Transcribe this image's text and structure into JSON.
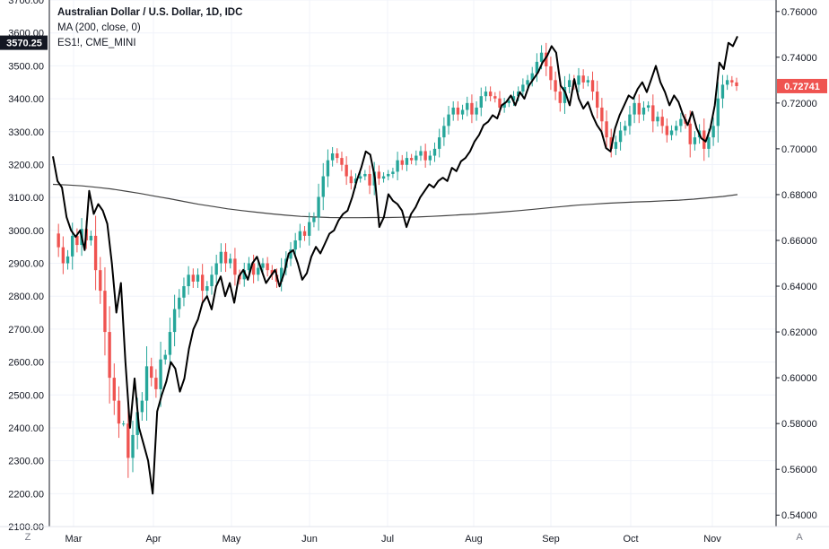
{
  "legend": {
    "title": "Australian Dollar / U.S. Dollar, 1D, IDC",
    "ma": "MA (200, close, 0)",
    "es": "ES1!, CME_MINI"
  },
  "badges": {
    "left_value": "3570.25",
    "right_value": "0.72741",
    "left_color": "#131722",
    "right_color": "#ef5350"
  },
  "buttons": {
    "left": "Z",
    "right": "A"
  },
  "chart_data": {
    "type": "line",
    "title": "Australian Dollar / U.S. Dollar, 1D, IDC",
    "x_tick_labels": [
      "Mar",
      "Apr",
      "May",
      "Jun",
      "Jul",
      "Aug",
      "Sep",
      "Oct",
      "Nov"
    ],
    "left_axis": {
      "ylim": [
        2100,
        3700
      ],
      "ticks": [
        "3700.00",
        "3600.00",
        "3500.00",
        "3400.00",
        "3300.00",
        "3200.00",
        "3100.00",
        "3000.00",
        "2900.00",
        "2800.00",
        "2700.00",
        "2600.00",
        "2500.00",
        "2400.00",
        "2300.00",
        "2200.00",
        "2100.00"
      ]
    },
    "right_axis": {
      "ylim": [
        0.535,
        0.765
      ],
      "ticks": [
        "0.76000",
        "0.74000",
        "0.72000",
        "0.70000",
        "0.68000",
        "0.66000",
        "0.64000",
        "0.62000",
        "0.60000",
        "0.58000",
        "0.56000",
        "0.54000"
      ]
    },
    "colors": {
      "up": "#26a69a",
      "down": "#ef5350",
      "es_line": "#000000",
      "ma_line": "#444444",
      "grid": "#f0f3fa"
    },
    "grid": true,
    "series": [
      {
        "name": "ES1!, CME_MINI",
        "axis": "left",
        "values": [
          3225,
          3150,
          3130,
          3040,
          3000,
          2980,
          3000,
          2940,
          3120,
          3050,
          3080,
          3060,
          3020,
          2900,
          2750,
          2840,
          2600,
          2400,
          2550,
          2400,
          2350,
          2300,
          2200,
          2450,
          2500,
          2540,
          2600,
          2580,
          2510,
          2550,
          2640,
          2700,
          2730,
          2780,
          2800,
          2760,
          2830,
          2860,
          2800,
          2840,
          2780,
          2860,
          2880,
          2850,
          2900,
          2920,
          2880,
          2840,
          2860,
          2880,
          2830,
          2870,
          2930,
          2940,
          2900,
          2850,
          2870,
          2920,
          2950,
          2930,
          2960,
          2990,
          3000,
          3030,
          3050,
          3060,
          3100,
          3150,
          3190,
          3240,
          3230,
          3160,
          3010,
          3040,
          3110,
          3090,
          3080,
          3060,
          3010,
          3050,
          3070,
          3100,
          3120,
          3140,
          3130,
          3150,
          3160,
          3150,
          3190,
          3180,
          3210,
          3220,
          3240,
          3270,
          3290,
          3320,
          3330,
          3350,
          3340,
          3380,
          3390,
          3410,
          3380,
          3420,
          3400,
          3440,
          3460,
          3480,
          3510,
          3530,
          3560,
          3540,
          3440,
          3420,
          3380,
          3460,
          3400,
          3370,
          3390,
          3350,
          3320,
          3300,
          3250,
          3240,
          3310,
          3350,
          3380,
          3410,
          3400,
          3430,
          3450,
          3420,
          3460,
          3500,
          3450,
          3420,
          3380,
          3410,
          3390,
          3350,
          3320,
          3360,
          3310,
          3280,
          3270,
          3310,
          3380,
          3510,
          3490,
          3570,
          3560,
          3590
        ]
      },
      {
        "name": "MA (200, close, 0)",
        "axis": "right",
        "values": [
          0.6845,
          0.6842,
          0.6838,
          0.6832,
          0.6825,
          0.6815,
          0.6805,
          0.6793,
          0.6782,
          0.677,
          0.6758,
          0.6748,
          0.6738,
          0.673,
          0.6723,
          0.6716,
          0.671,
          0.6705,
          0.6702,
          0.67,
          0.6699,
          0.6699,
          0.67,
          0.67,
          0.6701,
          0.6702,
          0.6705,
          0.6708,
          0.6712,
          0.6715,
          0.672,
          0.6725,
          0.673,
          0.6736,
          0.6742,
          0.6748,
          0.6754,
          0.6758,
          0.6762,
          0.6765,
          0.6768,
          0.677,
          0.6773,
          0.6776,
          0.678,
          0.6786,
          0.6792,
          0.68
        ]
      },
      {
        "name": "Australian Dollar / U.S. Dollar",
        "axis": "right",
        "kind": "candlestick",
        "values": [
          0.663,
          0.657,
          0.65,
          0.653,
          0.662,
          0.658,
          0.665,
          0.66,
          0.662,
          0.647,
          0.638,
          0.62,
          0.6,
          0.59,
          0.58,
          0.58,
          0.565,
          0.575,
          0.585,
          0.59,
          0.605,
          0.6,
          0.595,
          0.608,
          0.61,
          0.62,
          0.63,
          0.635,
          0.64,
          0.645,
          0.642,
          0.645,
          0.638,
          0.64,
          0.645,
          0.65,
          0.655,
          0.65,
          0.652,
          0.645,
          0.643,
          0.647,
          0.65,
          0.645,
          0.648,
          0.65,
          0.647,
          0.645,
          0.642,
          0.648,
          0.652,
          0.656,
          0.66,
          0.664,
          0.662,
          0.668,
          0.67,
          0.679,
          0.688,
          0.695,
          0.698,
          0.696,
          0.693,
          0.688,
          0.685,
          0.687,
          0.688,
          0.689,
          0.684,
          0.69,
          0.687,
          0.688,
          0.689,
          0.69,
          0.695,
          0.693,
          0.696,
          0.695,
          0.697,
          0.699,
          0.695,
          0.697,
          0.7,
          0.705,
          0.71,
          0.715,
          0.718,
          0.715,
          0.717,
          0.72,
          0.715,
          0.718,
          0.723,
          0.725,
          0.723,
          0.722,
          0.718,
          0.72,
          0.721,
          0.723,
          0.725,
          0.728,
          0.73,
          0.733,
          0.738,
          0.742,
          0.736,
          0.73,
          0.725,
          0.72,
          0.727,
          0.73,
          0.728,
          0.732,
          0.729,
          0.73,
          0.725,
          0.718,
          0.712,
          0.705,
          0.7,
          0.703,
          0.708,
          0.71,
          0.715,
          0.72,
          0.715,
          0.718,
          0.719,
          0.712,
          0.714,
          0.71,
          0.706,
          0.708,
          0.71,
          0.713,
          0.711,
          0.702,
          0.705,
          0.708,
          0.7,
          0.705,
          0.71,
          0.722,
          0.728,
          0.73,
          0.729,
          0.7274
        ]
      }
    ]
  }
}
